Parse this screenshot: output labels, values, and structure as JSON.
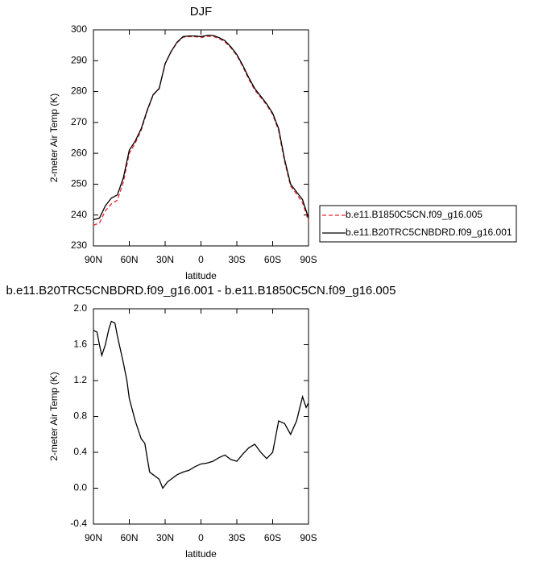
{
  "chart_data": [
    {
      "type": "line",
      "title": "DJF",
      "x_label": "latitude",
      "y_label": "2-meter Air Temp (K)",
      "x": [
        90,
        85,
        80,
        75,
        70,
        65,
        60,
        55,
        50,
        45,
        40,
        35,
        30,
        25,
        20,
        15,
        10,
        5,
        0,
        -5,
        -10,
        -15,
        -20,
        -25,
        -30,
        -35,
        -40,
        -45,
        -50,
        -55,
        -60,
        -65,
        -70,
        -75,
        -80,
        -85,
        -90
      ],
      "series": [
        {
          "name": "b.e11.B1850C5CN.f09_g16.005",
          "color": "#e8242b",
          "line_style": "dashed",
          "values": [
            236.7,
            237.4,
            241.4,
            243.6,
            244.8,
            250.6,
            260,
            263.3,
            267.5,
            273.7,
            278.9,
            280.9,
            289,
            292.9,
            295.85,
            297.6,
            297.8,
            297.8,
            297.5,
            297.9,
            297.9,
            297.2,
            296.1,
            294.2,
            291.7,
            288.1,
            284,
            280.5,
            278.1,
            275.7,
            272.6,
            267.3,
            257.3,
            249.4,
            246.8,
            244,
            238
          ]
        },
        {
          "name": "b.e11.B20TRC5CNBDRD.f09_g16.001",
          "color": "#000000",
          "line_style": "solid",
          "values": [
            238.5,
            239,
            243,
            245.5,
            246.5,
            252,
            261,
            264,
            268,
            274,
            279,
            281,
            289,
            293,
            296,
            297.8,
            298,
            298,
            297.8,
            298.2,
            298.2,
            297.5,
            296.5,
            294.5,
            292,
            288.5,
            284.5,
            281,
            278.5,
            276,
            273,
            268,
            258,
            250,
            247.5,
            245,
            239
          ]
        }
      ],
      "xlim": [
        90,
        -90
      ],
      "xticks": [
        {
          "value": 90,
          "label": "90N"
        },
        {
          "value": 60,
          "label": "60N"
        },
        {
          "value": 30,
          "label": "30N"
        },
        0,
        {
          "value": -30,
          "label": "30S"
        },
        {
          "value": -60,
          "label": "60S"
        },
        {
          "value": -90,
          "label": "90S"
        }
      ],
      "ylim": [
        230,
        300
      ],
      "yticks": [
        230,
        240,
        250,
        260,
        270,
        280,
        290,
        300
      ],
      "legend": "right"
    },
    {
      "type": "line",
      "title": "b.e11.B20TRC5CNBDRD.f09_g16.001 - b.e11.B1850C5CN.f09_g16.005",
      "x_label": "latitude",
      "y_label": "2-meter Air Temp (K)",
      "x": [
        90,
        87,
        85,
        83,
        80,
        77,
        75,
        72,
        70,
        65,
        62,
        60,
        55,
        50,
        47,
        43,
        40,
        35,
        32,
        28,
        25,
        20,
        15,
        10,
        5,
        0,
        -5,
        -10,
        -15,
        -20,
        -25,
        -30,
        -35,
        -40,
        -45,
        -50,
        -55,
        -60,
        -65,
        -70,
        -75,
        -80,
        -85,
        -88,
        -90
      ],
      "values": [
        1.76,
        1.74,
        1.6,
        1.48,
        1.6,
        1.78,
        1.86,
        1.84,
        1.7,
        1.4,
        1.2,
        1.0,
        0.75,
        0.55,
        0.5,
        0.18,
        0.15,
        0.1,
        0.0,
        0.07,
        0.1,
        0.15,
        0.18,
        0.2,
        0.24,
        0.27,
        0.28,
        0.3,
        0.34,
        0.37,
        0.32,
        0.3,
        0.38,
        0.45,
        0.49,
        0.4,
        0.33,
        0.4,
        0.75,
        0.72,
        0.6,
        0.75,
        1.02,
        0.9,
        0.95
      ],
      "color": "#000000",
      "xlim": [
        90,
        -90
      ],
      "xticks": [
        {
          "value": 90,
          "label": "90N"
        },
        {
          "value": 60,
          "label": "60N"
        },
        {
          "value": 30,
          "label": "30N"
        },
        0,
        {
          "value": -30,
          "label": "30S"
        },
        {
          "value": -60,
          "label": "60S"
        },
        {
          "value": -90,
          "label": "90S"
        }
      ],
      "ylim": [
        -0.4,
        2.0
      ],
      "yticks": [
        -0.4,
        {
          "value": 0,
          "label": "0.0"
        },
        0.4,
        0.8,
        1.2,
        1.6,
        {
          "value": 2,
          "label": "2.0"
        }
      ]
    }
  ]
}
